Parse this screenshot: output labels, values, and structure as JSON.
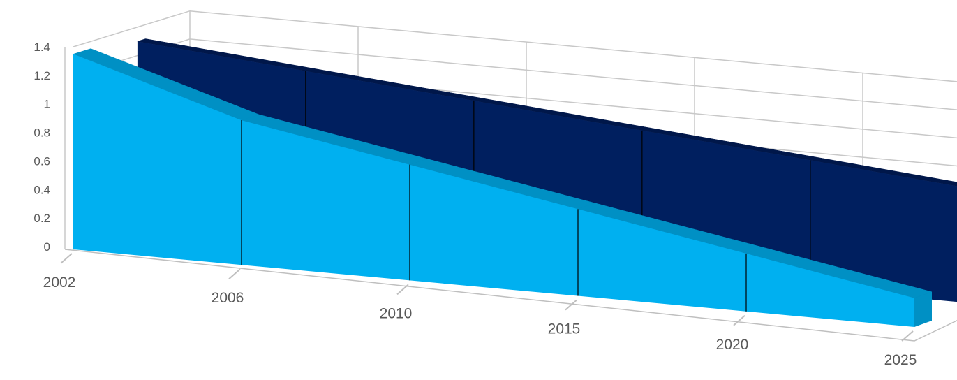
{
  "chart_data": {
    "type": "area",
    "style": "3d-area",
    "categories": [
      "2002",
      "2006",
      "2010",
      "2015",
      "2020",
      "2025"
    ],
    "ylim": [
      0,
      1.4
    ],
    "yticks": [
      "0",
      "0.2",
      "0.4",
      "0.6",
      "0.8",
      "1",
      "1.2",
      "1.4"
    ],
    "grid": true,
    "legend": "none",
    "title": "",
    "xlabel": "",
    "ylabel": "",
    "series": [
      {
        "values": [
          1.3,
          1.2,
          1.1,
          1.0,
          0.9,
          0.8
        ],
        "color": "#001f5f",
        "top_color": "#00174a",
        "depth": "back"
      },
      {
        "values": [
          1.35,
          1.0,
          0.8,
          0.6,
          0.4,
          0.2
        ],
        "color": "#00b0f0",
        "top_color": "#0090c4",
        "depth": "front"
      }
    ],
    "colors": {
      "grid": "#c8c8c8",
      "axis_text": "#595959",
      "floor": "#bfbfbf"
    }
  }
}
